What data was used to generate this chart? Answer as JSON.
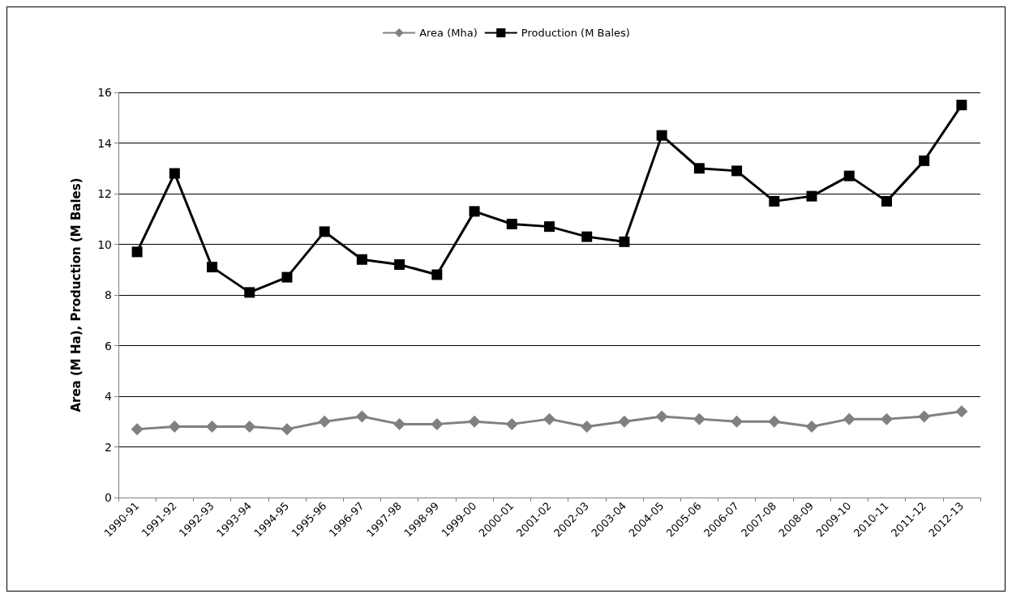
{
  "chart_data": {
    "type": "line",
    "ylabel": "Area (M Ha), Production (M Bales)",
    "categories": [
      "1990-91",
      "1991-92",
      "1992-93",
      "1993-94",
      "1994-95",
      "1995-96",
      "1996-97",
      "1997-98",
      "1998-99",
      "1999-00",
      "2000-01",
      "2001-02",
      "2002-03",
      "2003-04",
      "2004-05",
      "2005-06",
      "2006-07",
      "2007-08",
      "2008-09",
      "2009-10",
      "2010-11",
      "2011-12",
      "2012-13"
    ],
    "series": [
      {
        "name": "Area (Mha)",
        "color": "#808080",
        "marker": "diamond",
        "values": [
          2.7,
          2.8,
          2.8,
          2.8,
          2.7,
          3.0,
          3.2,
          2.9,
          2.9,
          3.0,
          2.9,
          3.1,
          2.8,
          3.0,
          3.2,
          3.1,
          3.0,
          3.0,
          2.8,
          3.1,
          3.1,
          3.2,
          3.4
        ]
      },
      {
        "name": "Production (M Bales)",
        "color": "#000000",
        "marker": "square",
        "values": [
          9.7,
          12.8,
          9.1,
          8.1,
          8.7,
          10.5,
          9.4,
          9.2,
          8.8,
          11.3,
          10.8,
          10.7,
          10.3,
          10.1,
          14.3,
          13.0,
          12.9,
          11.7,
          11.9,
          12.7,
          11.7,
          13.3,
          15.5
        ]
      }
    ],
    "ylim": [
      0,
      16
    ],
    "yticks": [
      0,
      2,
      4,
      6,
      8,
      10,
      12,
      14,
      16
    ],
    "grid": "y",
    "legend": "top",
    "line_style": "solid"
  }
}
